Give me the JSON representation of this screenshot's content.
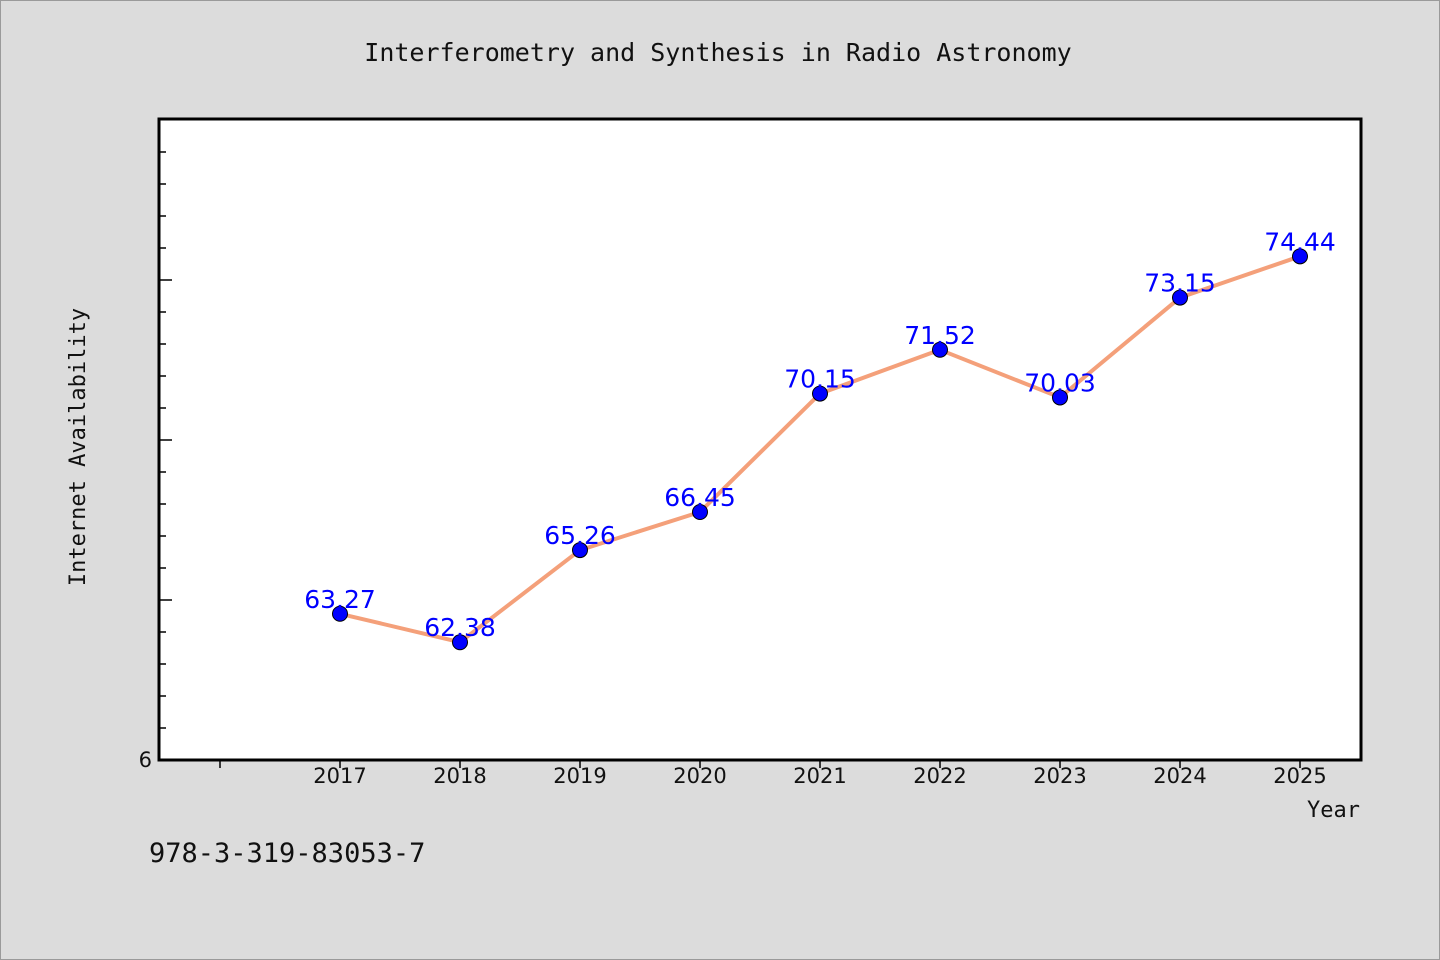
{
  "chart_data": {
    "type": "line",
    "title": "Interferometry and Synthesis in Radio Astronomy",
    "xlabel": "Year",
    "ylabel": "Internet Availability",
    "categories": [
      "2017",
      "2018",
      "2019",
      "2020",
      "2021",
      "2022",
      "2023",
      "2024",
      "2025"
    ],
    "series": [
      {
        "values": [
          63.27,
          62.38,
          65.26,
          66.45,
          70.15,
          71.52,
          70.03,
          73.15,
          74.44
        ],
        "labels": [
          "63.27",
          "62.38",
          "65.26",
          "66.45",
          "70.15",
          "71.52",
          "70.03",
          "73.15",
          "74.44"
        ]
      }
    ],
    "ylim": [
      58.7,
      78.7
    ],
    "y_tick_labels": [
      "6"
    ],
    "grid": false,
    "line_color": "#f4a07a",
    "marker_color": "#0000ff"
  },
  "annotation": "978-3-319-83053-7"
}
